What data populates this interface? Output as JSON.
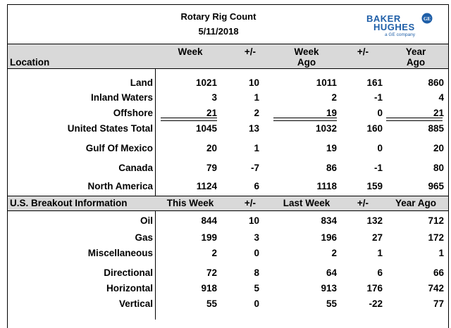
{
  "header": {
    "title": "Rotary Rig Count",
    "date": "5/11/2018",
    "logo_line1": "BAKER",
    "logo_line2": "HUGHES",
    "logo_sub": "a GE company",
    "logo_mark": "GE"
  },
  "location_header": {
    "label": "Location",
    "week": "Week",
    "pm1": "+/-",
    "week_ago_1": "Week",
    "week_ago_2": "Ago",
    "pm2": "+/-",
    "year_ago_1": "Year",
    "year_ago_2": "Ago"
  },
  "location_rows": [
    {
      "label": "Land",
      "week": "1021",
      "pm1": "10",
      "week_ago": "1011",
      "pm2": "161",
      "year_ago": "860"
    },
    {
      "label": "Inland Waters",
      "week": "3",
      "pm1": "1",
      "week_ago": "2",
      "pm2": "-1",
      "year_ago": "4"
    },
    {
      "label": "Offshore",
      "week": "21",
      "pm1": "2",
      "week_ago": "19",
      "pm2": "0",
      "year_ago": "21"
    },
    {
      "label": "United States Total",
      "week": "1045",
      "pm1": "13",
      "week_ago": "1032",
      "pm2": "160",
      "year_ago": "885"
    },
    {
      "label": "Gulf Of Mexico",
      "week": "20",
      "pm1": "1",
      "week_ago": "19",
      "pm2": "0",
      "year_ago": "20"
    },
    {
      "label": "Canada",
      "week": "79",
      "pm1": "-7",
      "week_ago": "86",
      "pm2": "-1",
      "year_ago": "80"
    },
    {
      "label": "North America",
      "week": "1124",
      "pm1": "6",
      "week_ago": "1118",
      "pm2": "159",
      "year_ago": "965"
    }
  ],
  "breakout_header": {
    "label": "U.S. Breakout Information",
    "this_week": "This Week",
    "pm1": "+/-",
    "last_week": "Last Week",
    "pm2": "+/-",
    "year_ago": "Year Ago"
  },
  "breakout_rows": [
    {
      "label": "Oil",
      "week": "844",
      "pm1": "10",
      "week_ago": "834",
      "pm2": "132",
      "year_ago": "712"
    },
    {
      "label": "Gas",
      "week": "199",
      "pm1": "3",
      "week_ago": "196",
      "pm2": "27",
      "year_ago": "172"
    },
    {
      "label": "Miscellaneous",
      "week": "2",
      "pm1": "0",
      "week_ago": "2",
      "pm2": "1",
      "year_ago": "1"
    },
    {
      "label": "Directional",
      "week": "72",
      "pm1": "8",
      "week_ago": "64",
      "pm2": "6",
      "year_ago": "66"
    },
    {
      "label": "Horizontal",
      "week": "918",
      "pm1": "5",
      "week_ago": "913",
      "pm2": "176",
      "year_ago": "742"
    },
    {
      "label": "Vertical",
      "week": "55",
      "pm1": "0",
      "week_ago": "55",
      "pm2": "-22",
      "year_ago": "77"
    }
  ]
}
